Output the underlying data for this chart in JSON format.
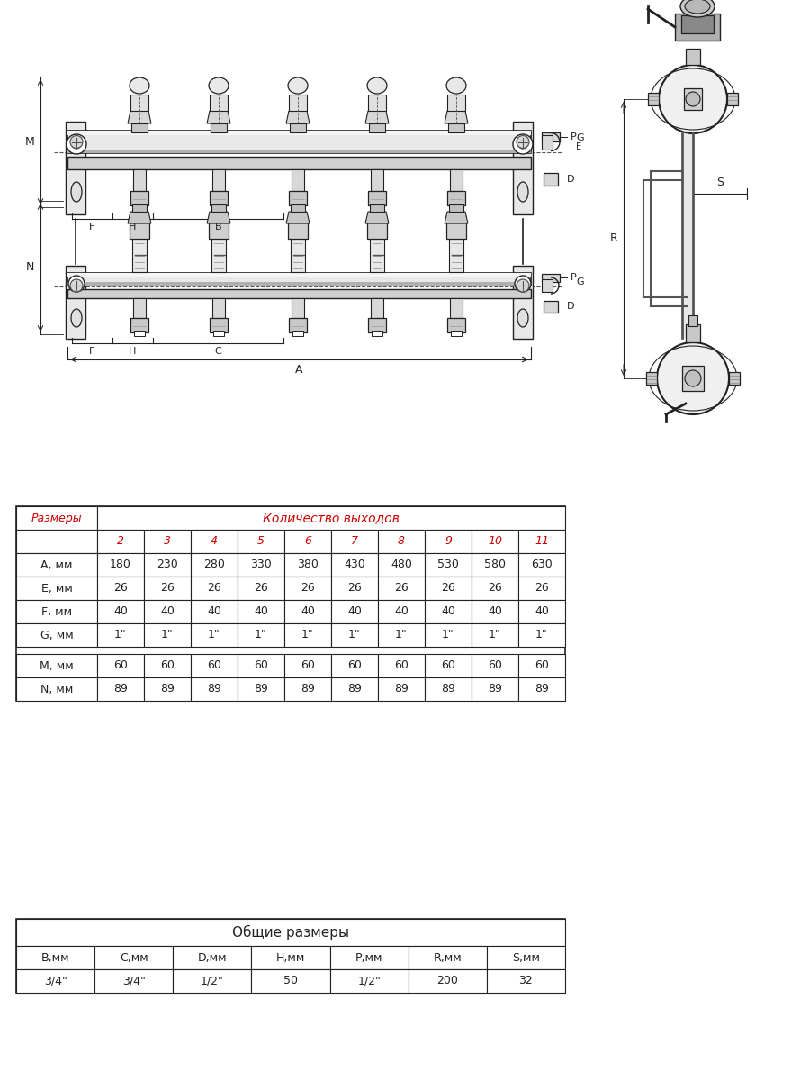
{
  "table1_header_col": "Размеры",
  "table1_header_span": "Количество выходов",
  "table1_columns": [
    "2",
    "3",
    "4",
    "5",
    "6",
    "7",
    "8",
    "9",
    "10",
    "11"
  ],
  "table1_rows": [
    [
      "А, мм",
      "180",
      "230",
      "280",
      "330",
      "380",
      "430",
      "480",
      "530",
      "580",
      "630"
    ],
    [
      "Е, мм",
      "26",
      "26",
      "26",
      "26",
      "26",
      "26",
      "26",
      "26",
      "26",
      "26"
    ],
    [
      "F, мм",
      "40",
      "40",
      "40",
      "40",
      "40",
      "40",
      "40",
      "40",
      "40",
      "40"
    ],
    [
      "G, мм",
      "1\"",
      "1\"",
      "1\"",
      "1\"",
      "1\"",
      "1\"",
      "1\"",
      "1\"",
      "1\"",
      "1\""
    ],
    [
      "М, мм",
      "60",
      "60",
      "60",
      "60",
      "60",
      "60",
      "60",
      "60",
      "60",
      "60"
    ],
    [
      "N, мм",
      "89",
      "89",
      "89",
      "89",
      "89",
      "89",
      "89",
      "89",
      "89",
      "89"
    ]
  ],
  "table2_title": "Общие размеры",
  "table2_headers": [
    "B,мм",
    "C,мм",
    "D,мм",
    "H,мм",
    "P,мм",
    "R,мм",
    "S,мм"
  ],
  "table2_values": [
    "3/4\"",
    "3/4\"",
    "1/2\"",
    "50",
    "1/2\"",
    "200",
    "32"
  ],
  "bg_color": "#ffffff",
  "red_color": "#cc0000",
  "dark_color": "#222222",
  "mid_color": "#555555",
  "light_color": "#aaaaaa",
  "fill_light": "#e8e8e8",
  "fill_mid": "#cccccc",
  "fill_dark": "#888888"
}
